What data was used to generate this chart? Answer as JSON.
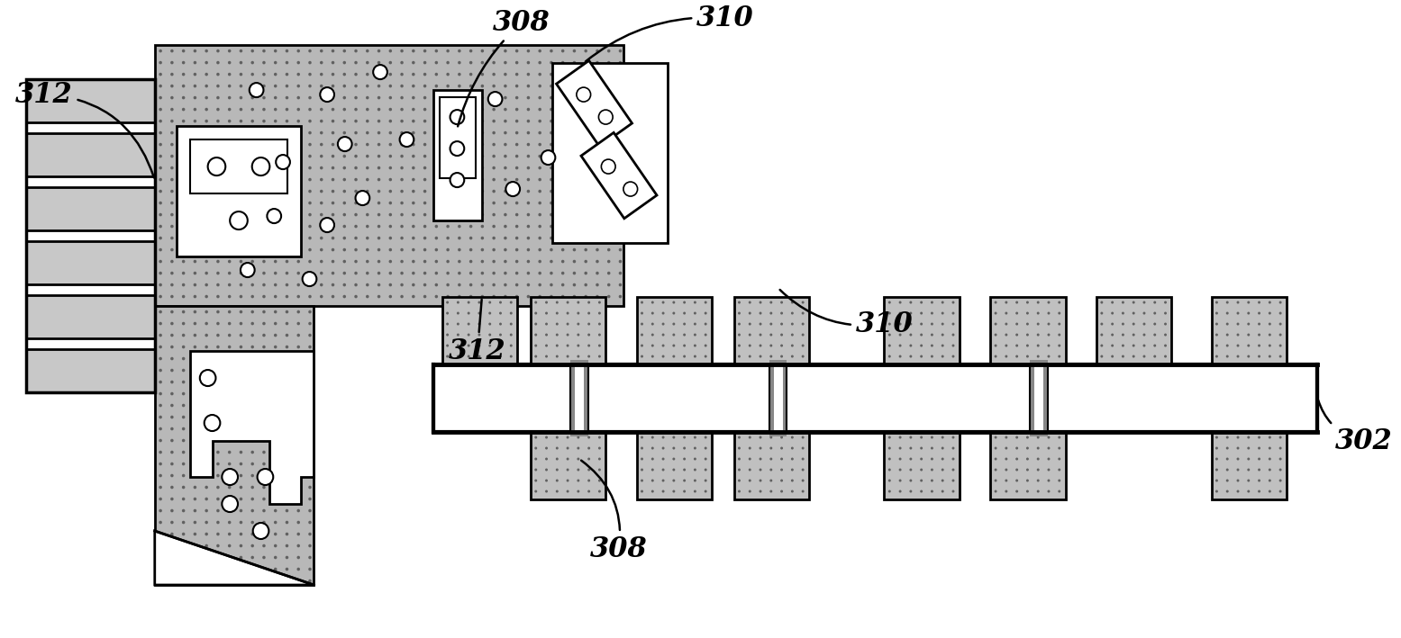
{
  "bg_color": "#ffffff",
  "board_color": "#b8b8b8",
  "stipple_color": "#909090",
  "connector_pad_color": "#c8c8c8",
  "white_color": "#ffffff",
  "black_color": "#000000",
  "fig_w": 15.55,
  "fig_h": 7.09,
  "dpi": 100
}
